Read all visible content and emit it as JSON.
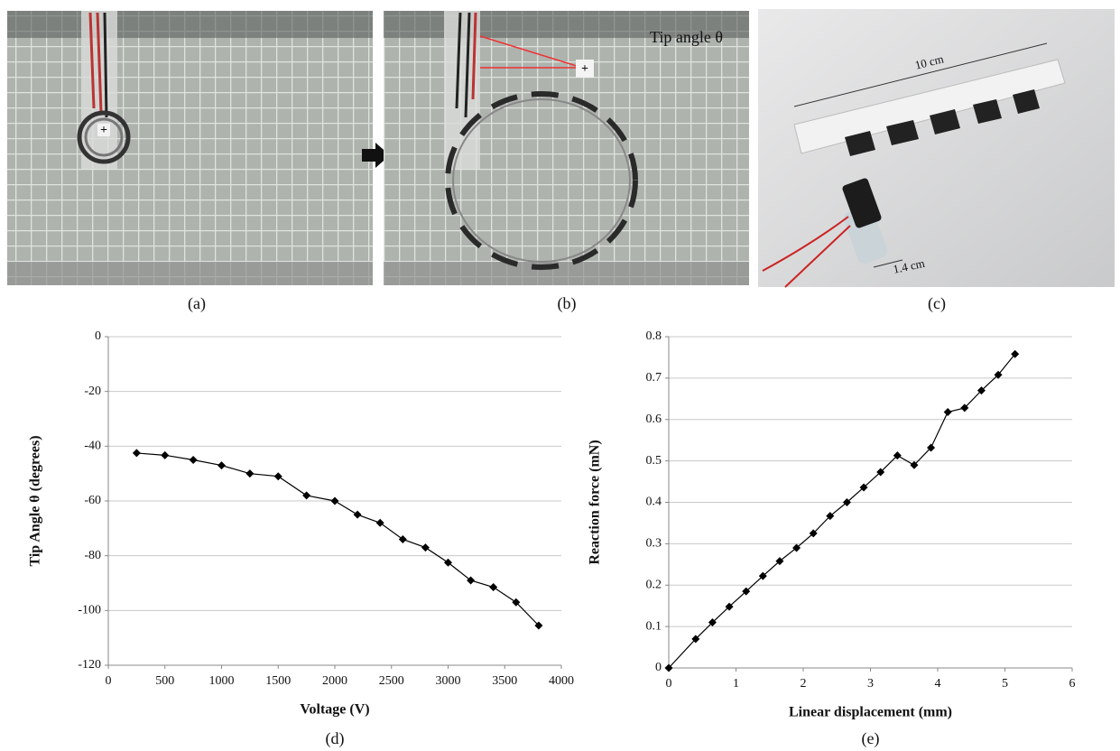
{
  "panels": [
    {
      "caption": "(a)",
      "marks": [
        "+"
      ]
    },
    {
      "caption": "(b)",
      "annotation": "Tip angle θ",
      "marks": [
        "+"
      ]
    },
    {
      "caption": "(c)",
      "annotations": [
        "10 cm",
        "1.4 cm"
      ]
    }
  ],
  "chart_data": [
    {
      "type": "line",
      "caption": "(d)",
      "x_label": "Voltage (V)",
      "y_label": "Tip Angle θ (degrees)",
      "x": [
        250,
        500,
        750,
        1000,
        1250,
        1500,
        1750,
        2000,
        2200,
        2400,
        2600,
        2800,
        3000,
        3200,
        3400,
        3600,
        3800
      ],
      "values": [
        -42.5,
        -43.3,
        -45,
        -47,
        -50,
        -51,
        -58,
        -60,
        -65,
        -68,
        -74,
        -77,
        -82.5,
        -89,
        -91.5,
        -97,
        -105.5
      ],
      "color": "#000000",
      "marker": "diamond",
      "xlim": [
        0,
        4000
      ],
      "xticks": [
        0,
        500,
        1000,
        1500,
        2000,
        2500,
        3000,
        3500,
        4000
      ],
      "ylim": [
        -120,
        0
      ],
      "yticks": [
        -120,
        -100,
        -80,
        -60,
        -40,
        -20,
        0
      ],
      "grid": true
    },
    {
      "type": "line",
      "caption": "(e)",
      "x_label": "Linear displacement (mm)",
      "y_label": "Reaction force (mN)",
      "x": [
        0,
        0.4,
        0.65,
        0.9,
        1.15,
        1.4,
        1.65,
        1.9,
        2.15,
        2.4,
        2.65,
        2.9,
        3.15,
        3.4,
        3.65,
        3.9,
        4.15,
        4.4,
        4.65,
        4.9,
        5.15
      ],
      "values": [
        0,
        0.07,
        0.11,
        0.148,
        0.185,
        0.222,
        0.258,
        0.29,
        0.325,
        0.367,
        0.4,
        0.436,
        0.473,
        0.513,
        0.49,
        0.532,
        0.618,
        0.628,
        0.67,
        0.708,
        0.758
      ],
      "color": "#000000",
      "marker": "diamond",
      "xlim": [
        0,
        6
      ],
      "xticks": [
        0,
        1,
        2,
        3,
        4,
        5,
        6
      ],
      "ylim": [
        0,
        0.8
      ],
      "yticks": [
        0,
        0.1,
        0.2,
        0.3,
        0.4,
        0.5,
        0.6,
        0.7,
        0.8
      ],
      "grid": true
    }
  ]
}
